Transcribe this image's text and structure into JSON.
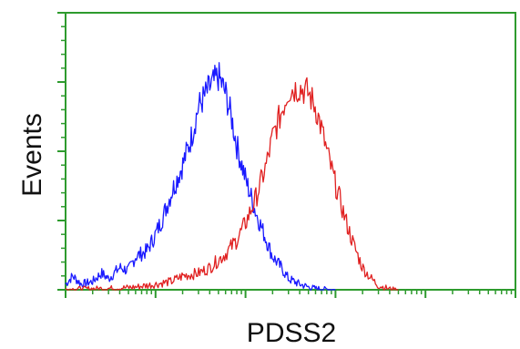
{
  "chart_data": {
    "type": "line",
    "xlabel": "PDSS2",
    "ylabel": "Events",
    "x_scale": "log",
    "xlim": [
      1,
      100000
    ],
    "ylim": [
      0,
      1
    ],
    "grid": false,
    "frame_color": "#2e9b2e",
    "series": [
      {
        "color": "#1a1aff",
        "x": [
          1,
          1.2,
          1.5,
          2,
          2.5,
          3,
          4,
          5,
          6,
          8,
          10,
          12,
          15,
          20,
          25,
          30,
          40,
          50,
          60,
          70,
          80,
          100,
          130,
          170,
          200,
          250,
          300,
          400,
          500,
          600,
          800,
          1000
        ],
        "y": [
          0.02,
          0.05,
          0.02,
          0.03,
          0.06,
          0.04,
          0.08,
          0.07,
          0.12,
          0.14,
          0.2,
          0.26,
          0.35,
          0.45,
          0.55,
          0.66,
          0.73,
          0.77,
          0.71,
          0.62,
          0.52,
          0.4,
          0.28,
          0.18,
          0.12,
          0.08,
          0.04,
          0.02,
          0.01,
          0.005,
          0.002,
          0
        ]
      },
      {
        "color": "#e02020",
        "x": [
          1,
          2,
          4,
          6,
          10,
          15,
          20,
          30,
          40,
          60,
          80,
          100,
          130,
          170,
          200,
          250,
          300,
          400,
          500,
          600,
          700,
          800,
          1000,
          1300,
          1600,
          2000,
          2500,
          3000,
          4000,
          5000
        ],
        "y": [
          0.002,
          0.004,
          0.006,
          0.01,
          0.02,
          0.03,
          0.05,
          0.06,
          0.08,
          0.13,
          0.18,
          0.24,
          0.33,
          0.45,
          0.55,
          0.64,
          0.72,
          0.73,
          0.71,
          0.66,
          0.58,
          0.5,
          0.38,
          0.25,
          0.16,
          0.08,
          0.04,
          0.015,
          0.003,
          0
        ]
      }
    ]
  }
}
